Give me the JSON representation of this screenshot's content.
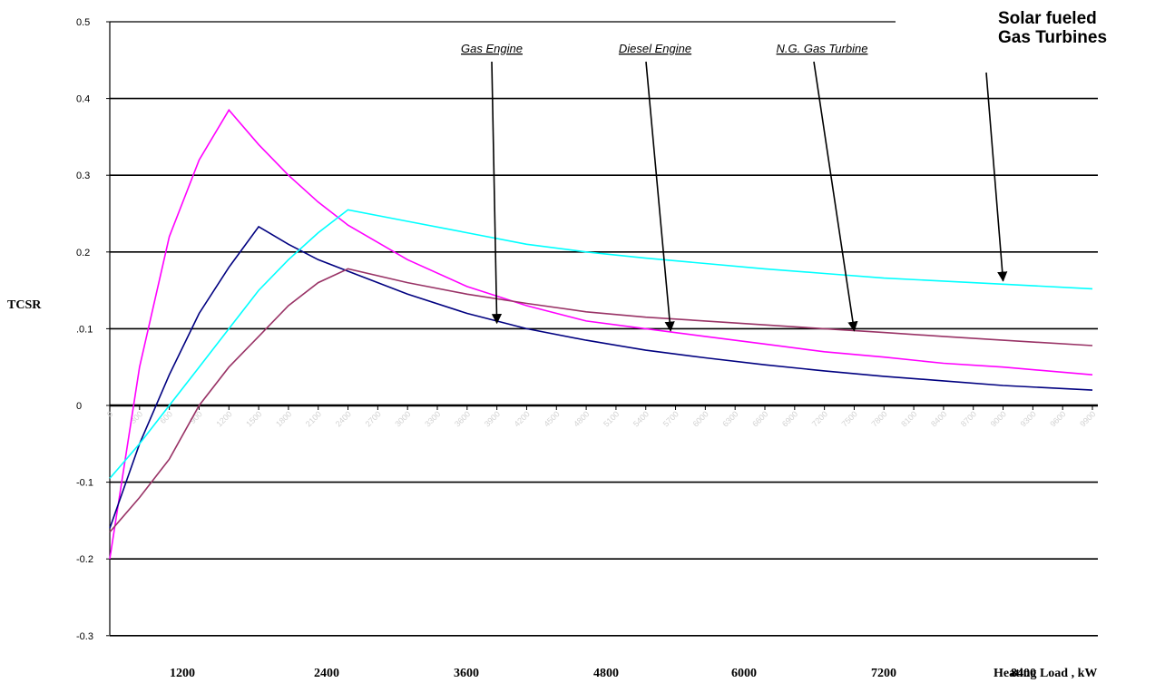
{
  "chart_data": {
    "type": "line",
    "ylabel": "TCSR",
    "xlabel": "Heating Load , kW",
    "ylim": [
      -0.3,
      0.5
    ],
    "xlim": [
      0,
      9900
    ],
    "y_ticks": [
      {
        "value": 0.5,
        "label": "0.5"
      },
      {
        "value": 0.4,
        "label": "0.4"
      },
      {
        "value": 0.3,
        "label": "0.3"
      },
      {
        "value": 0.2,
        "label": "0.2"
      },
      {
        "value": 0.1,
        "label": ".0.1"
      },
      {
        "value": 0.0,
        "label": "0"
      },
      {
        "value": -0.1,
        "label": "-0.1"
      },
      {
        "value": -0.2,
        "label": "-0.2"
      },
      {
        "value": -0.3,
        "label": "-0.3"
      }
    ],
    "grid_values": [
      0.4,
      0.3,
      0.2,
      0.1,
      -0.1,
      -0.2,
      -0.3
    ],
    "x_tick_labels": [
      "0",
      "300",
      "600",
      "900",
      "1200",
      "1500",
      "1800",
      "2100",
      "2400",
      "2700",
      "3000",
      "3300",
      "3600",
      "3900",
      "4200",
      "4500",
      "4800",
      "5100",
      "5400",
      "5700",
      "6000",
      "6300",
      "6600",
      "6900",
      "7200",
      "7500",
      "7800",
      "8100",
      "8400",
      "8700",
      "9000",
      "9300",
      "9600",
      "9900"
    ],
    "bottom_labels": [
      "1200",
      "2400",
      "3600",
      "4800",
      "6000",
      "7200",
      "8400"
    ],
    "series": [
      {
        "color": "#ff00ff",
        "points": [
          [
            0,
            -0.2
          ],
          [
            300,
            0.05
          ],
          [
            600,
            0.22
          ],
          [
            900,
            0.32
          ],
          [
            1200,
            0.385
          ],
          [
            1500,
            0.34
          ],
          [
            1800,
            0.3
          ],
          [
            2100,
            0.265
          ],
          [
            2400,
            0.235
          ],
          [
            3000,
            0.19
          ],
          [
            3600,
            0.155
          ],
          [
            4200,
            0.13
          ],
          [
            4800,
            0.11
          ],
          [
            5400,
            0.1
          ],
          [
            6000,
            0.09
          ],
          [
            6600,
            0.08
          ],
          [
            7200,
            0.07
          ],
          [
            7800,
            0.063
          ],
          [
            8400,
            0.055
          ],
          [
            9000,
            0.05
          ],
          [
            9900,
            0.04
          ]
        ]
      },
      {
        "color": "#000080",
        "points": [
          [
            0,
            -0.16
          ],
          [
            300,
            -0.05
          ],
          [
            600,
            0.04
          ],
          [
            900,
            0.12
          ],
          [
            1200,
            0.18
          ],
          [
            1500,
            0.233
          ],
          [
            1800,
            0.21
          ],
          [
            2100,
            0.19
          ],
          [
            2400,
            0.175
          ],
          [
            3000,
            0.145
          ],
          [
            3600,
            0.12
          ],
          [
            4200,
            0.1
          ],
          [
            4800,
            0.085
          ],
          [
            5400,
            0.072
          ],
          [
            6000,
            0.062
          ],
          [
            6600,
            0.053
          ],
          [
            7200,
            0.045
          ],
          [
            7800,
            0.038
          ],
          [
            8400,
            0.032
          ],
          [
            9000,
            0.026
          ],
          [
            9900,
            0.02
          ]
        ]
      },
      {
        "color": "#00ffff",
        "points": [
          [
            0,
            -0.095
          ],
          [
            300,
            -0.05
          ],
          [
            600,
            0.0
          ],
          [
            900,
            0.05
          ],
          [
            1200,
            0.1
          ],
          [
            1500,
            0.15
          ],
          [
            1800,
            0.19
          ],
          [
            2100,
            0.225
          ],
          [
            2400,
            0.255
          ],
          [
            3000,
            0.24
          ],
          [
            3600,
            0.225
          ],
          [
            4200,
            0.21
          ],
          [
            4800,
            0.2
          ],
          [
            5400,
            0.192
          ],
          [
            6000,
            0.185
          ],
          [
            6600,
            0.178
          ],
          [
            7200,
            0.172
          ],
          [
            7800,
            0.166
          ],
          [
            8400,
            0.162
          ],
          [
            9000,
            0.158
          ],
          [
            9900,
            0.152
          ]
        ]
      },
      {
        "color": "#993366",
        "points": [
          [
            0,
            -0.165
          ],
          [
            300,
            -0.12
          ],
          [
            600,
            -0.07
          ],
          [
            900,
            0.0
          ],
          [
            1200,
            0.05
          ],
          [
            1500,
            0.09
          ],
          [
            1800,
            0.13
          ],
          [
            2100,
            0.16
          ],
          [
            2400,
            0.178
          ],
          [
            3000,
            0.16
          ],
          [
            3600,
            0.145
          ],
          [
            4200,
            0.133
          ],
          [
            4800,
            0.122
          ],
          [
            5400,
            0.115
          ],
          [
            6000,
            0.11
          ],
          [
            6600,
            0.105
          ],
          [
            7200,
            0.1
          ],
          [
            7800,
            0.095
          ],
          [
            8400,
            0.09
          ],
          [
            9000,
            0.085
          ],
          [
            9900,
            0.078
          ]
        ]
      }
    ],
    "annotations": [
      {
        "text": "Gas Engine",
        "style": "italic-underline",
        "target": [
          3900,
          0.105
        ]
      },
      {
        "text": "Diesel Engine",
        "style": "italic-underline",
        "target": [
          5650,
          0.095
        ]
      },
      {
        "text": "N.G. Gas Turbine",
        "style": "italic-underline",
        "target": [
          7500,
          0.095
        ]
      },
      {
        "text": "Solar fueled\nGas Turbines",
        "lines": [
          "Solar fueled",
          "Gas Turbines"
        ],
        "style": "bold",
        "target": [
          9000,
          0.16
        ]
      }
    ]
  }
}
